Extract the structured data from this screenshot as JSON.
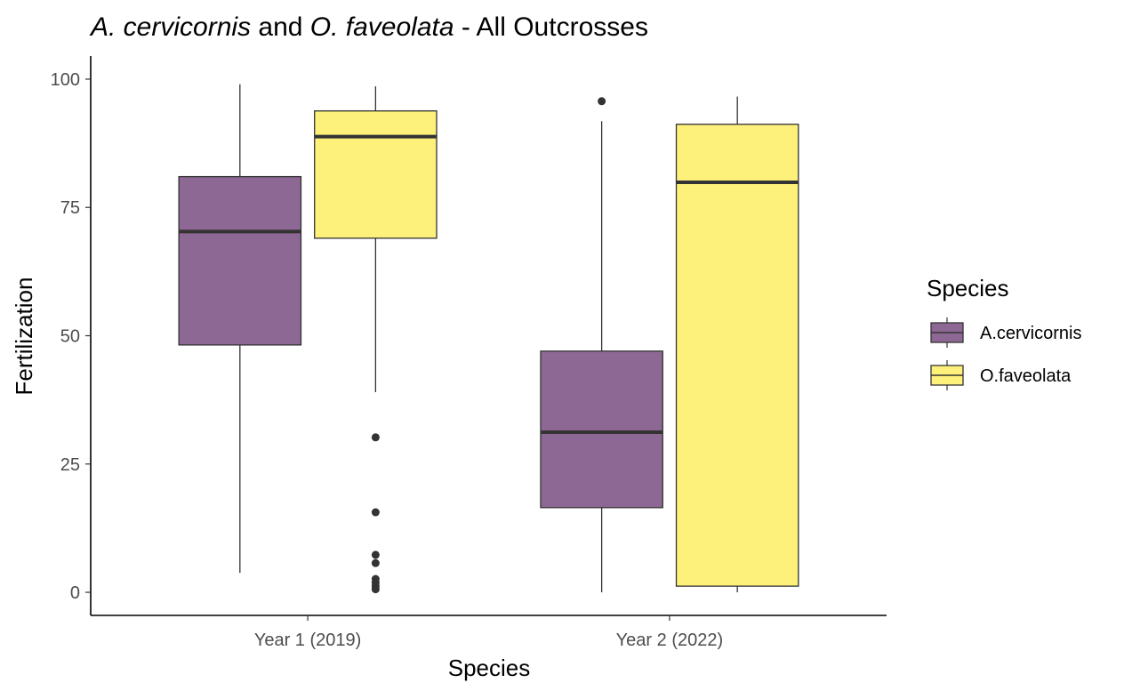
{
  "chart_data": {
    "type": "boxplot",
    "title": {
      "italic_a": "A. cervicornis",
      "and": " and ",
      "italic_b": "O. faveolata",
      "rest": " - All Outcrosses"
    },
    "xlabel": "Species",
    "ylabel": "Fertilization",
    "ylim": [
      -4.5,
      104.5
    ],
    "yticks": [
      0,
      25,
      50,
      75,
      100
    ],
    "categories": [
      "Year 1 (2019)",
      "Year 2 (2022)"
    ],
    "legend": {
      "title": "Species",
      "placement": "right"
    },
    "grid": false,
    "series": [
      {
        "name": "A.cervicornis",
        "color": "#8E6895",
        "boxes": [
          {
            "category": "Year 1 (2019)",
            "whisker_low": 3.8,
            "q1": 48.2,
            "median": 70.3,
            "q3": 81.0,
            "whisker_high": 99.0,
            "outliers": []
          },
          {
            "category": "Year 2 (2022)",
            "whisker_low": 0.0,
            "q1": 16.5,
            "median": 31.2,
            "q3": 47.0,
            "whisker_high": 91.8,
            "outliers": [
              95.7
            ]
          }
        ]
      },
      {
        "name": "O.faveolata",
        "color": "#FEF17B",
        "boxes": [
          {
            "category": "Year 1 (2019)",
            "whisker_low": 39.0,
            "q1": 69.0,
            "median": 88.8,
            "q3": 93.8,
            "whisker_high": 98.6,
            "outliers": [
              30.2,
              15.6,
              7.3,
              5.7,
              2.6,
              1.9,
              1.2,
              0.6
            ]
          },
          {
            "category": "Year 2 (2022)",
            "whisker_low": 0.0,
            "q1": 1.2,
            "median": 79.9,
            "q3": 91.2,
            "whisker_high": 96.6,
            "outliers": []
          }
        ]
      }
    ]
  }
}
